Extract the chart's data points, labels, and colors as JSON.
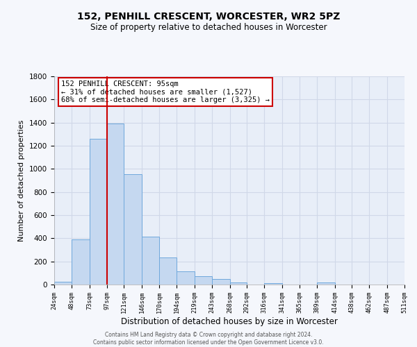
{
  "title": "152, PENHILL CRESCENT, WORCESTER, WR2 5PZ",
  "subtitle": "Size of property relative to detached houses in Worcester",
  "xlabel": "Distribution of detached houses by size in Worcester",
  "ylabel": "Number of detached properties",
  "bin_edges": [
    24,
    48,
    73,
    97,
    121,
    146,
    170,
    194,
    219,
    243,
    268,
    292,
    316,
    341,
    365,
    389,
    414,
    438,
    462,
    487,
    511
  ],
  "bar_heights": [
    25,
    390,
    1260,
    1395,
    955,
    415,
    235,
    115,
    70,
    50,
    20,
    0,
    15,
    0,
    0,
    18,
    0,
    0,
    0,
    0
  ],
  "bar_color": "#c5d8f0",
  "bar_edge_color": "#6fa8dc",
  "vline_x": 97,
  "vline_color": "#cc0000",
  "annotation_title": "152 PENHILL CRESCENT: 95sqm",
  "annotation_line1": "← 31% of detached houses are smaller (1,527)",
  "annotation_line2": "68% of semi-detached houses are larger (3,325) →",
  "annotation_box_color": "#ffffff",
  "annotation_box_edge_color": "#cc0000",
  "ylim": [
    0,
    1800
  ],
  "yticks": [
    0,
    200,
    400,
    600,
    800,
    1000,
    1200,
    1400,
    1600,
    1800
  ],
  "tick_labels": [
    "24sqm",
    "48sqm",
    "73sqm",
    "97sqm",
    "121sqm",
    "146sqm",
    "170sqm",
    "194sqm",
    "219sqm",
    "243sqm",
    "268sqm",
    "292sqm",
    "316sqm",
    "341sqm",
    "365sqm",
    "389sqm",
    "414sqm",
    "438sqm",
    "462sqm",
    "487sqm",
    "511sqm"
  ],
  "grid_color": "#d0d8e8",
  "bg_color": "#e8eef8",
  "fig_bg_color": "#f5f7fc",
  "footer_line1": "Contains HM Land Registry data © Crown copyright and database right 2024.",
  "footer_line2": "Contains public sector information licensed under the Open Government Licence v3.0."
}
